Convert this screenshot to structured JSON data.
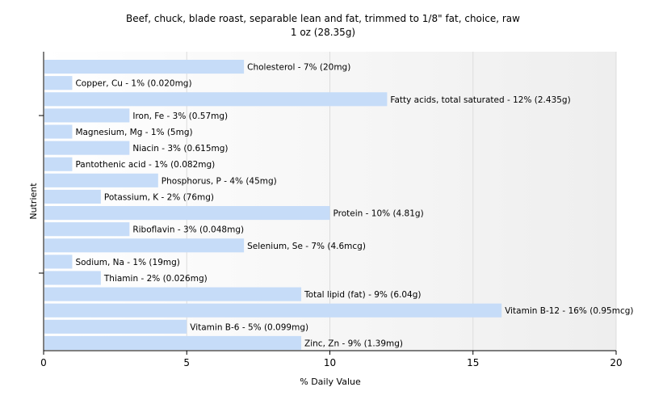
{
  "chart_data": {
    "type": "bar",
    "orientation": "horizontal",
    "title": "Beef, chuck, blade roast, separable lean and fat, trimmed to 1/8\" fat, choice, raw",
    "subtitle": "1 oz (28.35g)",
    "xlabel": "% Daily Value",
    "ylabel": "Nutrient",
    "xlim": [
      0,
      20
    ],
    "xticks": [
      "0",
      "5",
      "10",
      "15",
      "20"
    ],
    "grid": true,
    "bar_color": "#c6dcf8",
    "categories": [
      "Cholesterol",
      "Copper, Cu",
      "Fatty acids, total saturated",
      "Iron, Fe",
      "Magnesium, Mg",
      "Niacin",
      "Pantothenic acid",
      "Phosphorus, P",
      "Potassium, K",
      "Protein",
      "Riboflavin",
      "Selenium, Se",
      "Sodium, Na",
      "Thiamin",
      "Total lipid (fat)",
      "Vitamin B-12",
      "Vitamin B-6",
      "Zinc, Zn"
    ],
    "values": [
      7,
      1,
      12,
      3,
      1,
      3,
      1,
      4,
      2,
      10,
      3,
      7,
      1,
      2,
      9,
      16,
      5,
      9
    ],
    "labels": [
      "Cholesterol - 7% (20mg)",
      "Copper, Cu - 1% (0.020mg)",
      "Fatty acids, total saturated - 12% (2.435g)",
      "Iron, Fe - 3% (0.57mg)",
      "Magnesium, Mg - 1% (5mg)",
      "Niacin - 3% (0.615mg)",
      "Pantothenic acid - 1% (0.082mg)",
      "Phosphorus, P - 4% (45mg)",
      "Potassium, K - 2% (76mg)",
      "Protein - 10% (4.81g)",
      "Riboflavin - 3% (0.048mg)",
      "Selenium, Se - 7% (4.6mcg)",
      "Sodium, Na - 1% (19mg)",
      "Thiamin - 2% (0.026mg)",
      "Total lipid (fat) - 9% (6.04g)",
      "Vitamin B-12 - 16% (0.95mcg)",
      "Vitamin B-6 - 5% (0.099mg)",
      "Zinc, Zn - 9% (1.39mg)"
    ]
  }
}
